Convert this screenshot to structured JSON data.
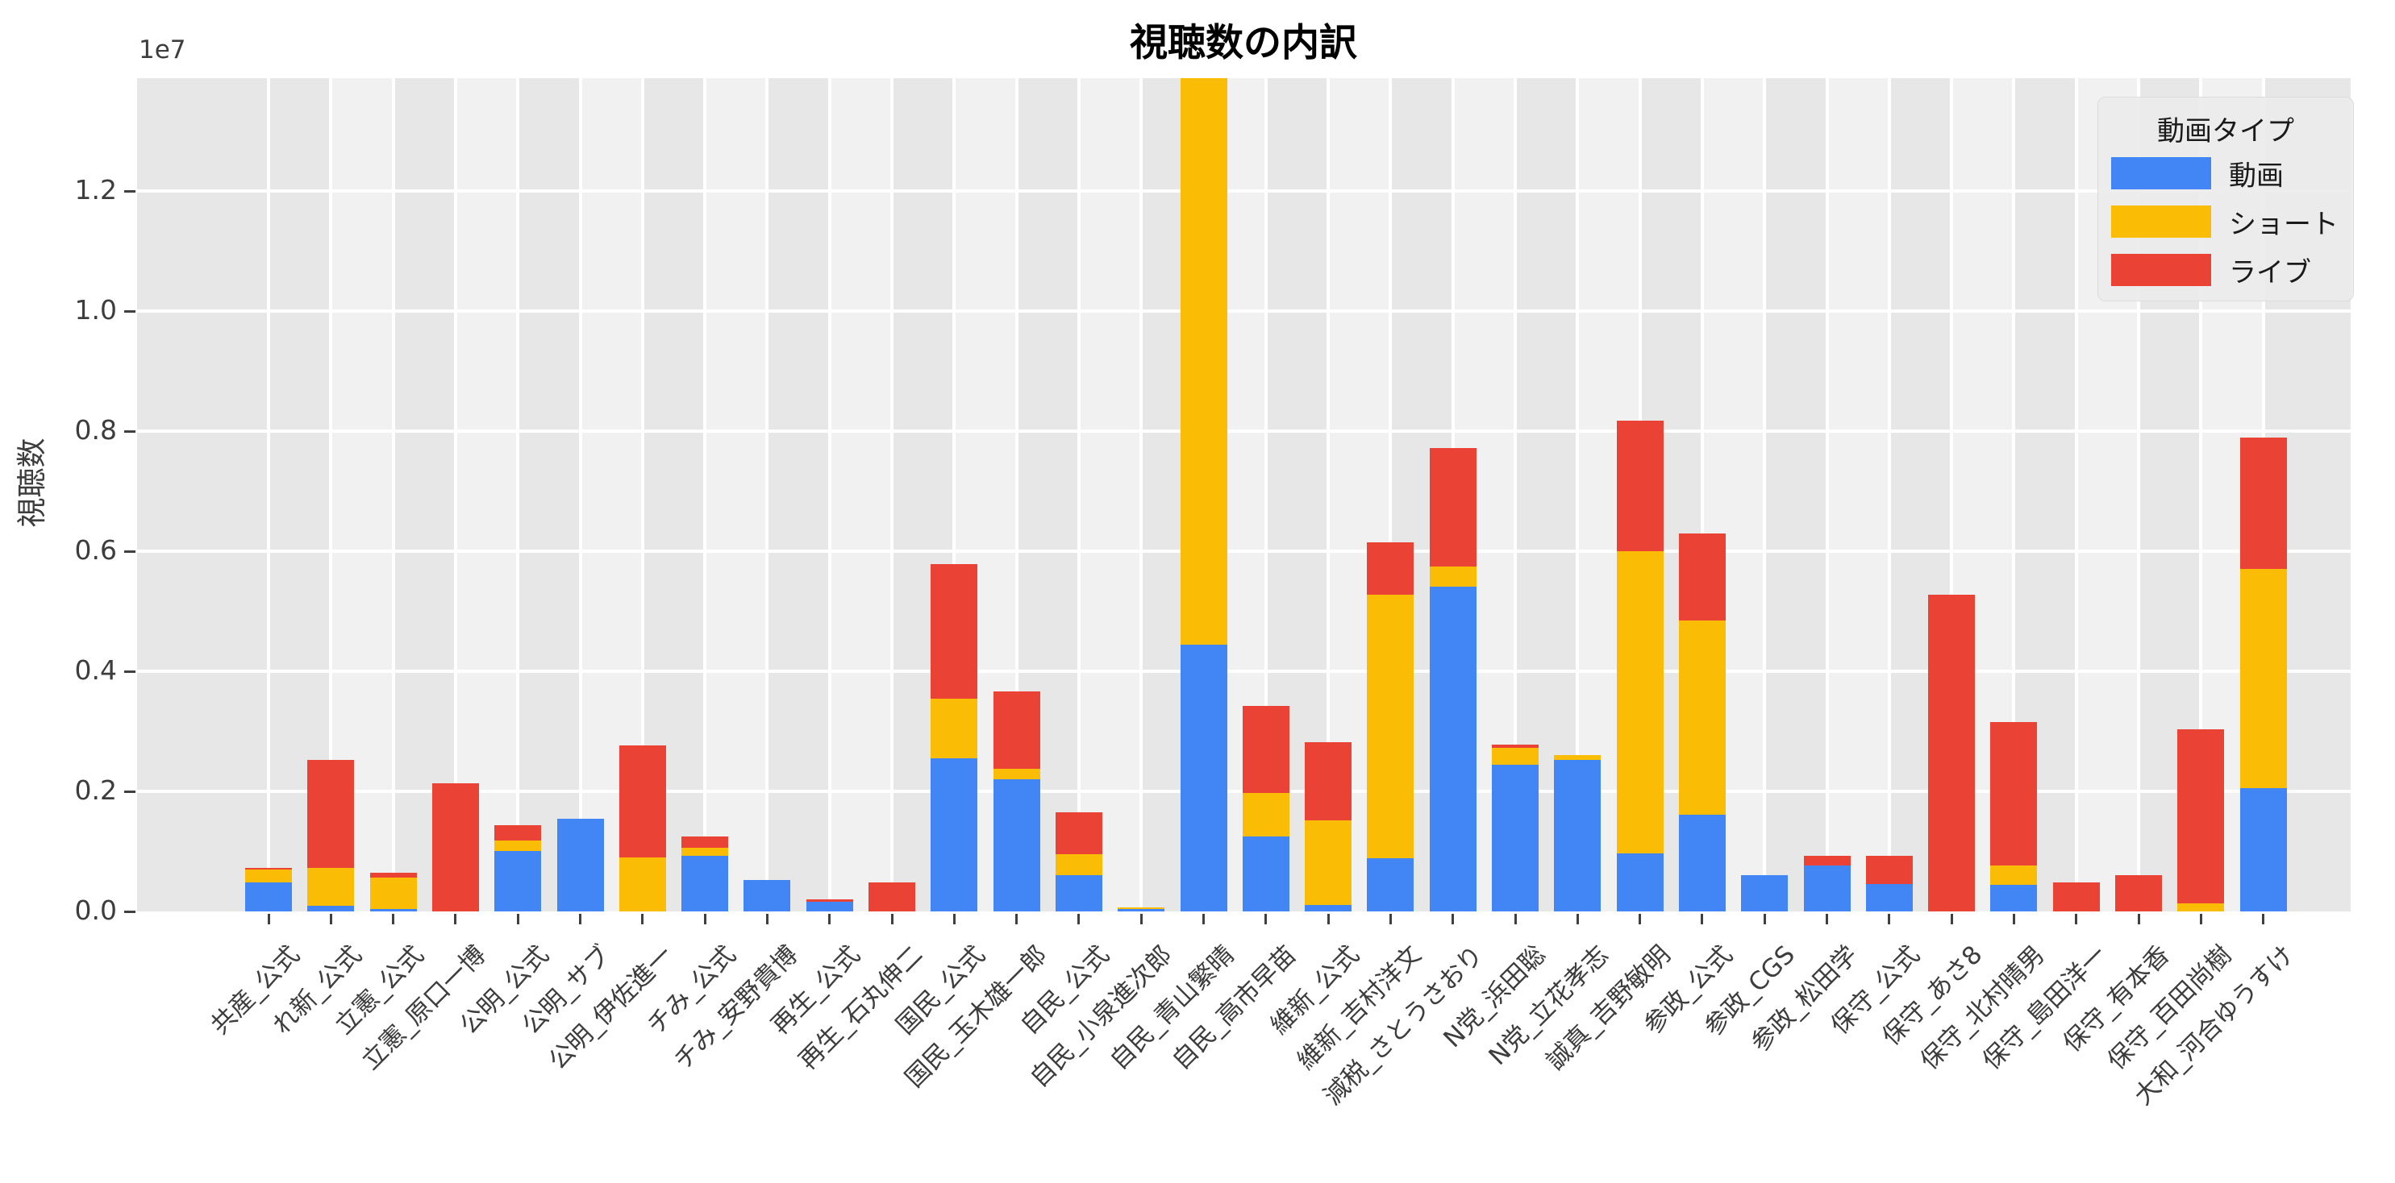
{
  "title": "視聴数の内訳",
  "legend": {
    "title": "動画タイプ"
  },
  "y_axis": {
    "label": "視聴数",
    "offset_label": "1e7",
    "tick_labels": [
      "0.0",
      "0.2",
      "0.4",
      "0.6",
      "0.8",
      "1.0",
      "1.2"
    ]
  },
  "chart_data": {
    "type": "bar",
    "stacked": true,
    "title": "視聴数の内訳",
    "xlabel": "",
    "ylabel": "視聴数",
    "y_scale_offset": "1e7",
    "ylim": [
      0,
      13880000
    ],
    "yticks": [
      0,
      2000000,
      4000000,
      6000000,
      8000000,
      10000000,
      12000000
    ],
    "grid": true,
    "legend_position": "upper right",
    "legend_title": "動画タイプ",
    "clipped_note": "自民_青山繁晴のショート棒はプロット上端で切れて表示されている",
    "categories": [
      "共産_公式",
      "れ新_公式",
      "立憲_公式",
      "立憲_原口一博",
      "公明_公式",
      "公明_サブ",
      "公明_伊佐進一",
      "チみ_公式",
      "チみ_安野貴博",
      "再生_公式",
      "再生_石丸伸二",
      "国民_公式",
      "国民_玉木雄一郎",
      "自民_公式",
      "自民_小泉進次郎",
      "自民_青山繁晴",
      "自民_高市早苗",
      "維新_公式",
      "維新_吉村洋文",
      "減税_さとうさおり",
      "N党_浜田聡",
      "N党_立花孝志",
      "誠真_吉野敏明",
      "参政_公式",
      "参政_CGS",
      "参政_松田学",
      "保守_公式",
      "保守_あさ8",
      "保守_北村晴男",
      "保守_島田洋一",
      "保守_有本香",
      "保守_百田尚樹",
      "大和_河合ゆうすけ"
    ],
    "series": [
      {
        "name": "動画",
        "color": "#4285F4",
        "values": [
          480000,
          90000,
          40000,
          0,
          1010000,
          1540000,
          0,
          920000,
          520000,
          160000,
          0,
          2550000,
          2200000,
          600000,
          45000,
          4450000,
          1250000,
          110000,
          890000,
          5410000,
          2450000,
          2520000,
          960000,
          1610000,
          610000,
          760000,
          450000,
          0,
          440000,
          0,
          0,
          0,
          2050000
        ]
      },
      {
        "name": "ショート",
        "color": "#FBBC05",
        "values": [
          220000,
          630000,
          520000,
          0,
          170000,
          0,
          900000,
          140000,
          0,
          0,
          0,
          1000000,
          180000,
          350000,
          25000,
          9500000,
          730000,
          1410000,
          4390000,
          340000,
          270000,
          80000,
          5040000,
          3240000,
          0,
          0,
          0,
          0,
          320000,
          0,
          0,
          130000,
          3660000
        ]
      },
      {
        "name": "ライブ",
        "color": "#EA4335",
        "values": [
          30000,
          1800000,
          90000,
          2140000,
          260000,
          0,
          1870000,
          190000,
          0,
          40000,
          490000,
          2230000,
          1290000,
          700000,
          0,
          0,
          1440000,
          1300000,
          870000,
          1970000,
          60000,
          0,
          2180000,
          1450000,
          0,
          160000,
          470000,
          5270000,
          2400000,
          490000,
          610000,
          2900000,
          2190000
        ]
      }
    ]
  }
}
